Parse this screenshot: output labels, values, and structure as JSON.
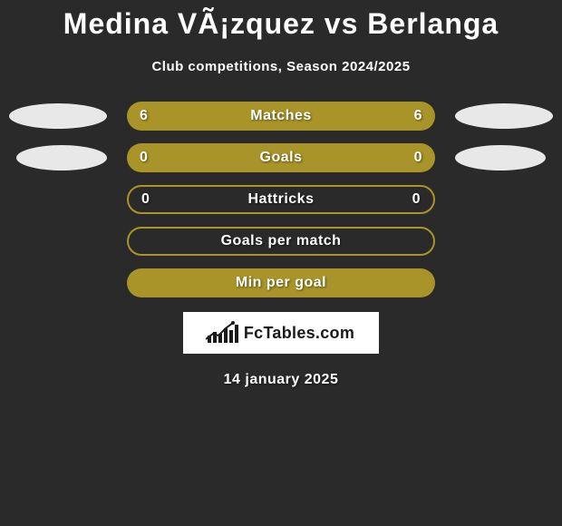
{
  "title": "Medina VÃ¡zquez vs Berlanga",
  "subtitle": "Club competitions, Season 2024/2025",
  "date": "14 january 2025",
  "logo_text": "FcTables.com",
  "colors": {
    "background": "#2a2a2a",
    "bar_olive": "#a89428",
    "bar_border": "#a89428",
    "bubble": "#e8e8e8",
    "text": "#ffffff"
  },
  "rows": [
    {
      "label": "Matches",
      "left_val": "6",
      "right_val": "6",
      "fill": "solid",
      "bubble_left_width": 108,
      "bubble_right_width": 108,
      "show_bubbles": true
    },
    {
      "label": "Goals",
      "left_val": "0",
      "right_val": "0",
      "fill": "solid",
      "bubble_left_width": 100,
      "bubble_right_width": 100,
      "show_bubbles": true
    },
    {
      "label": "Hattricks",
      "left_val": "0",
      "right_val": "0",
      "fill": "outline",
      "show_bubbles": false
    },
    {
      "label": "Goals per match",
      "left_val": "",
      "right_val": "",
      "fill": "outline",
      "show_bubbles": false
    },
    {
      "label": "Min per goal",
      "left_val": "",
      "right_val": "",
      "fill": "solid",
      "show_bubbles": false
    }
  ],
  "logo_bars_heights": [
    8,
    12,
    10,
    16,
    14,
    20
  ]
}
